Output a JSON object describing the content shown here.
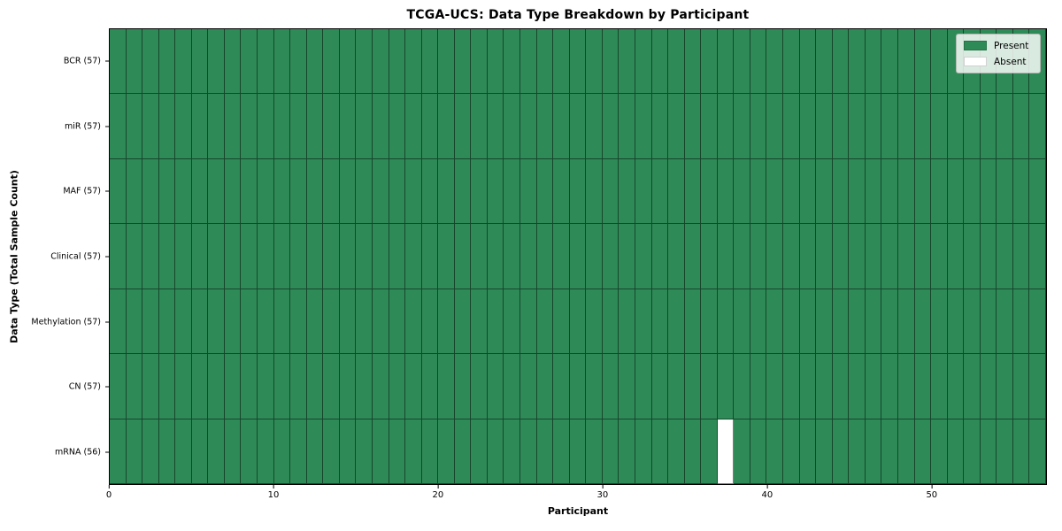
{
  "figure": {
    "title": "TCGA-UCS: Data Type Breakdown by Participant",
    "xlabel": "Participant",
    "ylabel": "Data Type (Total Sample Count)"
  },
  "legend": {
    "items": [
      {
        "label": "Present",
        "color": "#2E8B57"
      },
      {
        "label": "Absent",
        "color": "#FFFFFF"
      }
    ]
  },
  "chart_data": {
    "type": "heatmap",
    "title": "TCGA-UCS: Data Type Breakdown by Participant",
    "xlabel": "Participant",
    "ylabel": "Data Type (Total Sample Count)",
    "n_participants": 57,
    "x_range": [
      0,
      57
    ],
    "x_ticks": [
      0,
      10,
      20,
      30,
      40,
      50
    ],
    "grid": true,
    "legend_position": "upper right",
    "colors": {
      "present": "#2E8B57",
      "absent": "#FFFFFF",
      "cell_edge": "rgba(0,0,0,0.5)",
      "plot_border": "#000000"
    },
    "rows": [
      {
        "label": "BCR (57)",
        "data_type": "BCR",
        "total": 57,
        "absent_participants": []
      },
      {
        "label": "miR (57)",
        "data_type": "miR",
        "total": 57,
        "absent_participants": []
      },
      {
        "label": "MAF (57)",
        "data_type": "MAF",
        "total": 57,
        "absent_participants": []
      },
      {
        "label": "Clinical (57)",
        "data_type": "Clinical",
        "total": 57,
        "absent_participants": []
      },
      {
        "label": "Methylation (57)",
        "data_type": "Methylation",
        "total": 57,
        "absent_participants": []
      },
      {
        "label": "CN (57)",
        "data_type": "CN",
        "total": 57,
        "absent_participants": []
      },
      {
        "label": "mRNA (56)",
        "data_type": "mRNA",
        "total": 56,
        "absent_participants": [
          37
        ]
      }
    ]
  }
}
